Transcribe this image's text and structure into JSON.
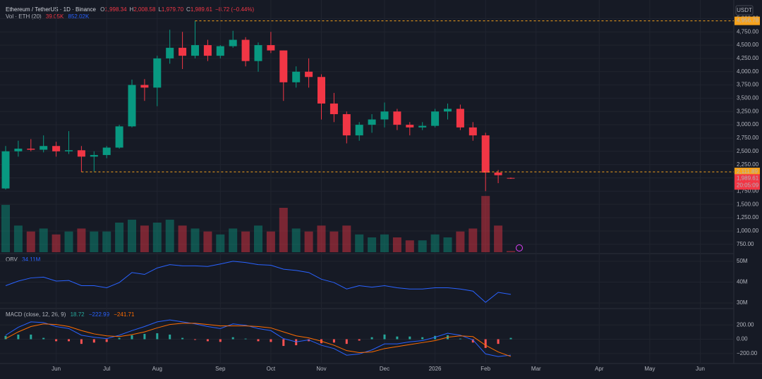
{
  "chart_data": [
    {
      "type": "candlestick",
      "symbol": "Ethereum / TetherUS · 1D · Binance",
      "ohlc_legend": [
        [
          "O",
          "1,998.34"
        ],
        [
          "H",
          "2,008.58"
        ],
        [
          "L",
          "1,979.70"
        ],
        [
          "C",
          "1,989.61"
        ]
      ],
      "change": "−8.72 (−0.44%)",
      "volume_legend": {
        "name": "Vol · ETH (20)",
        "value": "39.05K",
        "average": "852.02K"
      },
      "currency": "USDT",
      "categories": [
        null,
        null,
        null,
        null,
        "Jun",
        null,
        null,
        null,
        "Jul",
        null,
        null,
        null,
        "Aug",
        null,
        null,
        null,
        null,
        "Sep",
        null,
        null,
        null,
        "Oct",
        null,
        null,
        null,
        "Nov",
        null,
        null,
        null,
        null,
        "Dec",
        null,
        null,
        null,
        "2026",
        null,
        null,
        null,
        "Feb",
        null,
        null,
        null,
        "Mar",
        null,
        null,
        null,
        null,
        "Apr",
        null,
        null,
        null,
        "May",
        null,
        null,
        null,
        "Jun",
        null
      ],
      "open": [
        1800,
        2500,
        2550,
        2530,
        2600,
        2500,
        2520,
        2400,
        2430,
        2570,
        2970,
        3750,
        3700,
        4250,
        4450,
        4300,
        4500,
        4300,
        4480,
        4600,
        4200,
        4500,
        4400,
        3800,
        4000,
        3900,
        3400,
        3200,
        2800,
        3000,
        3100,
        3250,
        3000,
        2950,
        2980,
        3250,
        3300,
        2950,
        2800,
        2100,
        1998.34,
        null,
        null,
        null,
        null,
        null,
        null,
        null,
        null,
        null,
        null,
        null,
        null,
        null,
        null,
        null,
        null
      ],
      "high": [
        2600,
        2700,
        2730,
        2800,
        2680,
        2880,
        2600,
        2500,
        2600,
        3000,
        3850,
        3860,
        4300,
        4790,
        4750,
        4956.78,
        4600,
        4500,
        4770,
        4650,
        4550,
        4750,
        4400,
        4100,
        4250,
        3950,
        3600,
        3250,
        3050,
        3200,
        3420,
        3300,
        3050,
        3050,
        3300,
        3400,
        3380,
        3050,
        2850,
        2150,
        2008.58,
        null,
        null,
        null,
        null,
        null,
        null,
        null,
        null,
        null,
        null,
        null,
        null,
        null,
        null,
        null,
        null
      ],
      "low": [
        1780,
        2400,
        2500,
        2480,
        2400,
        2450,
        2111.89,
        2120,
        2370,
        2550,
        2950,
        3450,
        3350,
        4150,
        4050,
        4250,
        4200,
        4250,
        4450,
        4100,
        4000,
        4350,
        3450,
        3700,
        3700,
        3100,
        3050,
        2650,
        2700,
        2850,
        2950,
        2900,
        2800,
        2900,
        2950,
        3100,
        2900,
        2700,
        1750,
        1900,
        1979.7,
        null,
        null,
        null,
        null,
        null,
        null,
        null,
        null,
        null,
        null,
        null,
        null,
        null,
        null,
        null,
        null
      ],
      "close": [
        2500,
        2550,
        2530,
        2600,
        2500,
        2520,
        2400,
        2430,
        2570,
        2970,
        3750,
        3700,
        4250,
        4450,
        4300,
        4500,
        4300,
        4480,
        4600,
        4200,
        4500,
        4400,
        3800,
        4000,
        3900,
        3400,
        3200,
        2800,
        3000,
        3100,
        3250,
        3000,
        2950,
        2980,
        3250,
        3300,
        2950,
        2800,
        2100,
        2050,
        1989.61,
        null,
        null,
        null,
        null,
        null,
        null,
        null,
        null,
        null,
        null,
        null,
        null,
        null,
        null,
        null,
        null
      ],
      "volume": [
        1600,
        900,
        700,
        800,
        600,
        700,
        800,
        700,
        700,
        1000,
        1100,
        900,
        1000,
        1100,
        900,
        800,
        700,
        600,
        800,
        700,
        900,
        700,
        1500,
        800,
        700,
        900,
        700,
        900,
        600,
        500,
        600,
        500,
        400,
        400,
        600,
        500,
        700,
        800,
        1900,
        900,
        39.05,
        null,
        null,
        null,
        null,
        null,
        null,
        null,
        null,
        null,
        null,
        null,
        null,
        null,
        null,
        null,
        null
      ],
      "up_color": "#089981",
      "down_color": "#f23645",
      "ylim": [
        600,
        5350
      ],
      "yticks": [
        {
          "value": 750,
          "label": "750.00"
        },
        {
          "value": 1000,
          "label": "1,000.00"
        },
        {
          "value": 1250,
          "label": "1,250.00"
        },
        {
          "value": 1500,
          "label": "1,500.00"
        },
        {
          "value": 1750,
          "label": "1,750.00"
        },
        {
          "value": 2000,
          "label": "2,000.00"
        },
        {
          "value": 2250,
          "label": "2,250.00"
        },
        {
          "value": 2500,
          "label": "2,500.00"
        },
        {
          "value": 2750,
          "label": "2,750.00"
        },
        {
          "value": 3000,
          "label": "3,000.00"
        },
        {
          "value": 3250,
          "label": "3,250.00"
        },
        {
          "value": 3500,
          "label": "3,500.00"
        },
        {
          "value": 3750,
          "label": "3,750.00"
        },
        {
          "value": 4000,
          "label": "4,000.00"
        },
        {
          "value": 4250,
          "label": "4,250.00"
        },
        {
          "value": 4500,
          "label": "4,500.00"
        },
        {
          "value": 4750,
          "label": "4,750.00"
        },
        {
          "value": 5000,
          "label": "5,000.00"
        }
      ],
      "price_lines": [
        {
          "value": 4956.78,
          "label": "4,956.78",
          "color": "#f7a21b"
        },
        {
          "value": 2111.89,
          "label": "2,111.89",
          "color": "#f7a21b"
        }
      ],
      "last_price": {
        "value": 1989.61,
        "label": "1,989.61",
        "countdown": "20:05:09",
        "color": "#f23645"
      },
      "grid": true
    },
    {
      "type": "line",
      "name": "OBV",
      "value_label": "34.11M",
      "series": [
        {
          "name": "OBV",
          "color": "#2962ff",
          "values": [
            38.3,
            40.5,
            42,
            42.4,
            40.5,
            40.8,
            38.3,
            38.3,
            37.3,
            39.8,
            44.6,
            43.7,
            46.8,
            48.4,
            47.8,
            47.8,
            47.5,
            48.7,
            50,
            49.4,
            48.4,
            48.1,
            46.2,
            45.6,
            44.6,
            41.4,
            39.8,
            36.7,
            38.3,
            37.6,
            38.3,
            37.3,
            36.7,
            36.7,
            37.3,
            37.3,
            36.7,
            35.7,
            30.3,
            35.1,
            34.11,
            null,
            null,
            null,
            null,
            null,
            null,
            null,
            null,
            null,
            null,
            null,
            null,
            null,
            null,
            null,
            null
          ]
        }
      ],
      "ylim": [
        28,
        53
      ],
      "yticks": [
        {
          "value": 30,
          "label": "30M"
        },
        {
          "value": 40,
          "label": "40M"
        },
        {
          "value": 50,
          "label": "50M"
        }
      ]
    },
    {
      "type": "macd",
      "name": "MACD (close, 12, 26, 9)",
      "value_labels": [
        "18.72",
        "−222.99",
        "−241.71"
      ],
      "histogram": {
        "up_color": "#26a69a",
        "down_color": "#ff5252",
        "values": [
          47,
          65,
          65,
          19,
          -28,
          -28,
          -65,
          -47,
          -38,
          19,
          56,
          75,
          84,
          65,
          19,
          -9,
          -28,
          -37,
          28,
          9,
          -28,
          -38,
          -94,
          -84,
          -28,
          -56,
          -47,
          -65,
          -19,
          28,
          66,
          38,
          38,
          28,
          47,
          56,
          9,
          -46,
          -122,
          -65,
          18.72,
          null,
          null,
          null,
          null,
          null,
          null,
          null,
          null,
          null,
          null,
          null,
          null,
          null,
          null,
          null,
          null
        ]
      },
      "series": [
        {
          "name": "MACD",
          "color": "#2962ff",
          "values": [
            56,
            168,
            243,
            234,
            178,
            150,
            56,
            28,
            9,
            56,
            121,
            178,
            243,
            271,
            243,
            215,
            178,
            150,
            215,
            196,
            150,
            121,
            9,
            -37,
            -9,
            -84,
            -131,
            -224,
            -206,
            -150,
            -65,
            -65,
            -37,
            -19,
            28,
            84,
            56,
            -9,
            -206,
            -243,
            -222.99,
            null,
            null,
            null,
            null,
            null,
            null,
            null,
            null,
            null,
            null,
            null,
            null,
            null,
            null,
            null,
            null
          ]
        },
        {
          "name": "Signal",
          "color": "#ff6d00",
          "values": [
            9,
            103,
            178,
            215,
            206,
            178,
            121,
            75,
            47,
            37,
            65,
            103,
            159,
            206,
            224,
            224,
            206,
            187,
            187,
            187,
            178,
            159,
            103,
            47,
            19,
            -28,
            -84,
            -159,
            -187,
            -178,
            -131,
            -103,
            -75,
            -47,
            -19,
            28,
            47,
            37,
            -84,
            -178,
            -241.71,
            null,
            null,
            null,
            null,
            null,
            null,
            null,
            null,
            null,
            null,
            null,
            null,
            null,
            null,
            null,
            null
          ]
        }
      ],
      "ylim": [
        -340,
        410
      ],
      "yticks": [
        {
          "value": 200,
          "label": "200.00"
        },
        {
          "value": 0,
          "label": "0.00"
        },
        {
          "value": -200,
          "label": "−200.00"
        }
      ]
    }
  ]
}
